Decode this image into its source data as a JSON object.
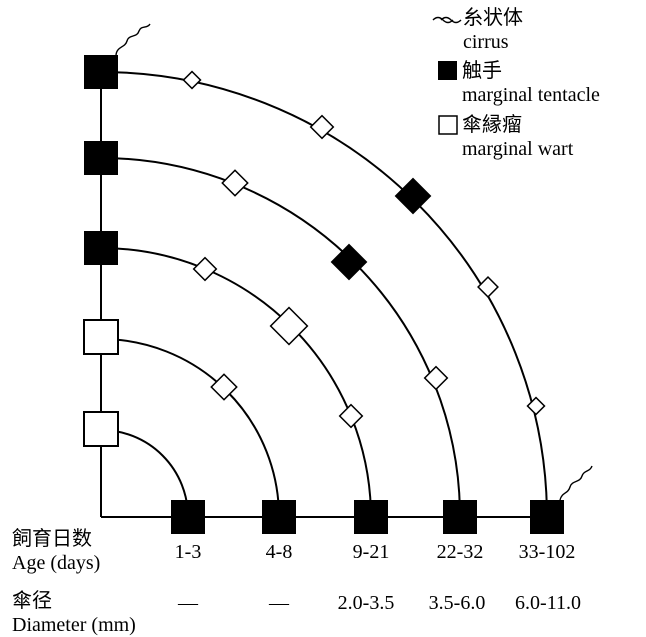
{
  "legend": {
    "cirrus": {
      "ja": "糸状体",
      "en": "cirrus",
      "icon": "cirrus-wave-icon"
    },
    "tentacle": {
      "ja": "触手",
      "en": "marginal tentacle",
      "icon": "filled-square-icon"
    },
    "wart": {
      "ja": "傘縁瘤",
      "en": "marginal wart",
      "icon": "open-square-icon"
    }
  },
  "row_labels": {
    "age_ja": "飼育日数",
    "age_en": "Age (days)",
    "diameter_ja": "傘径",
    "diameter_en": "Diameter (mm)"
  },
  "stages": [
    {
      "age": "1-3",
      "diameter": "—"
    },
    {
      "age": "4-8",
      "diameter": "—"
    },
    {
      "age": "9-21",
      "diameter": "2.0-3.5"
    },
    {
      "age": "22-32",
      "diameter": "3.5-6.0"
    },
    {
      "age": "33-102",
      "diameter": "6.0-11.0"
    }
  ],
  "colors": {
    "ink": "#000000",
    "paper": "#ffffff"
  }
}
